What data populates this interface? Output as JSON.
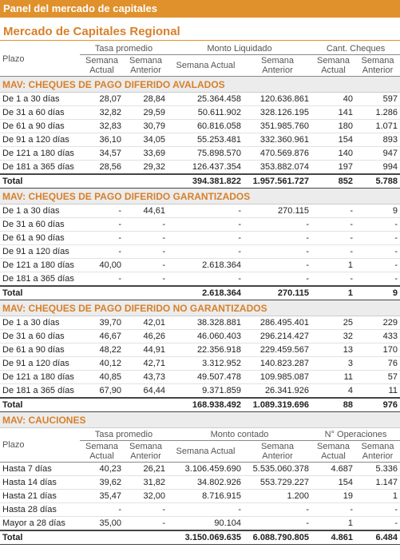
{
  "header": {
    "title": "Panel del mercado de capitales",
    "subtitle": "Mercado de Capitales Regional"
  },
  "columns": {
    "plazo": "Plazo",
    "groups": [
      "Tasa promedio",
      "Monto Liquidado",
      "Cant. Cheques"
    ],
    "subheaders": [
      "Semana Actual",
      "Semana Anterior",
      "Semana Actual",
      "Semana Anterior",
      "Semana Actual",
      "Semana Anterior"
    ]
  },
  "sections": [
    {
      "title": "MAV: CHEQUES DE PAGO DIFERIDO AVALADOS",
      "rows": [
        [
          "De 1 a 30 días",
          "28,07",
          "28,84",
          "25.364.458",
          "120.636.861",
          "40",
          "597"
        ],
        [
          "De 31 a 60 días",
          "32,82",
          "29,59",
          "50.611.902",
          "328.126.195",
          "141",
          "1.286"
        ],
        [
          "De 61 a 90 días",
          "32,83",
          "30,79",
          "60.816.058",
          "351.985.760",
          "180",
          "1.071"
        ],
        [
          "De 91 a 120 días",
          "36,10",
          "34,05",
          "55.253.481",
          "332.360.961",
          "154",
          "893"
        ],
        [
          "De 121 a 180 días",
          "34,57",
          "33,69",
          "75.898.570",
          "470.569.876",
          "140",
          "947"
        ],
        [
          "De 181 a 365 días",
          "28,56",
          "29,32",
          "126.437.354",
          "353.882.074",
          "197",
          "994"
        ]
      ],
      "total": [
        "Total",
        null,
        null,
        "394.381.822",
        "1.957.561.727",
        "852",
        "5.788"
      ]
    },
    {
      "title": "MAV: CHEQUES DE PAGO DIFERIDO GARANTIZADOS",
      "rows": [
        [
          "De 1 a 30 días",
          "-",
          "44,61",
          "-",
          "270.115",
          "-",
          "9"
        ],
        [
          "De 31 a 60 días",
          "-",
          "-",
          "-",
          "-",
          "-",
          "-"
        ],
        [
          "De 61 a 90 días",
          "-",
          "-",
          "-",
          "-",
          "-",
          "-"
        ],
        [
          "De 91 a 120 días",
          "-",
          "-",
          "-",
          "-",
          "-",
          "-"
        ],
        [
          "De 121 a 180 días",
          "40,00",
          "-",
          "2.618.364",
          "-",
          "1",
          "-"
        ],
        [
          "De 181 a 365 días",
          "-",
          "-",
          "-",
          "-",
          "-",
          "-"
        ]
      ],
      "total": [
        "Total",
        null,
        null,
        "2.618.364",
        "270.115",
        "1",
        "9"
      ]
    },
    {
      "title": "MAV: CHEQUES DE PAGO DIFERIDO NO GARANTIZADOS",
      "rows": [
        [
          "De 1 a 30 días",
          "39,70",
          "42,01",
          "38.328.881",
          "286.495.401",
          "25",
          "229"
        ],
        [
          "De 31 a 60 días",
          "46,67",
          "46,26",
          "46.060.403",
          "296.214.427",
          "32",
          "433"
        ],
        [
          "De 61 a 90 días",
          "48,22",
          "44,91",
          "22.356.918",
          "229.459.567",
          "13",
          "170"
        ],
        [
          "De 91 a 120 días",
          "40,12",
          "42,71",
          "3.312.952",
          "140.823.287",
          "3",
          "76"
        ],
        [
          "De 121 a 180 días",
          "40,85",
          "43,73",
          "49.507.478",
          "109.985.087",
          "11",
          "57"
        ],
        [
          "De 181 a 365 días",
          "67,90",
          "64,44",
          "9.371.859",
          "26.341.926",
          "4",
          "11"
        ]
      ],
      "total": [
        "Total",
        null,
        null,
        "168.938.492",
        "1.089.319.696",
        "88",
        "976"
      ]
    },
    {
      "title": "MAV: CAUCIONES",
      "columns": {
        "plazo": "Plazo",
        "groups": [
          "Tasa promedio",
          "Monto contado",
          "N° Operaciones"
        ],
        "subheaders": [
          "Semana Actual",
          "Semana Anterior",
          "Semana Actual",
          "Semana Anterior",
          "Semana Actual",
          "Semana Anterior"
        ]
      },
      "rows": [
        [
          "Hasta 7 días",
          "40,23",
          "26,21",
          "3.106.459.690",
          "5.535.060.378",
          "4.687",
          "5.336"
        ],
        [
          "Hasta 14 días",
          "39,62",
          "31,82",
          "34.802.926",
          "553.729.227",
          "154",
          "1.147"
        ],
        [
          "Hasta 21 días",
          "35,47",
          "32,00",
          "8.716.915",
          "1.200",
          "19",
          "1"
        ],
        [
          "Hasta 28 días",
          "-",
          "-",
          "-",
          "-",
          "-",
          "-"
        ],
        [
          "Mayor a 28 días",
          "35,00",
          "-",
          "90.104",
          "-",
          "1",
          "-"
        ]
      ],
      "total": [
        "Total",
        null,
        null,
        "3.150.069.635",
        "6.088.790.805",
        "4.861",
        "6.484"
      ]
    }
  ]
}
